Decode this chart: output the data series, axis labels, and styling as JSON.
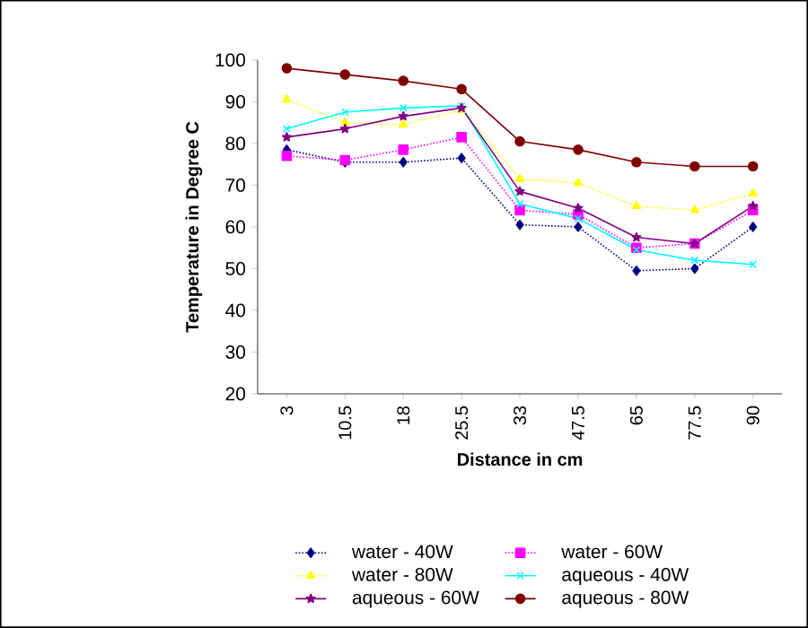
{
  "chart_data": {
    "type": "line",
    "xlabel": "Distance in cm",
    "ylabel": "Temperature in Degree C",
    "categories": [
      "3",
      "10.5",
      "18",
      "25.5",
      "33",
      "47.5",
      "65",
      "77.5",
      "90"
    ],
    "ylim": [
      20,
      100
    ],
    "yticks": [
      20,
      30,
      40,
      50,
      60,
      70,
      80,
      90,
      100
    ],
    "grid": false,
    "legend": "bottom",
    "series": [
      {
        "name": "water - 40W",
        "color": "#000080",
        "marker": "diamond",
        "line_style": "dotted",
        "values": [
          78.5,
          75.5,
          75.5,
          76.5,
          60.5,
          60,
          49.5,
          50,
          60
        ]
      },
      {
        "name": "water - 60W",
        "color": "#ff00ff",
        "marker": "square",
        "line_style": "dotted",
        "values": [
          77,
          76,
          78.5,
          81.5,
          64,
          63,
          55,
          56,
          64
        ]
      },
      {
        "name": "water - 80W",
        "color": "#ffff00",
        "marker": "triangle",
        "line_style": "dotted",
        "values": [
          90.5,
          85,
          84.5,
          88,
          71.5,
          70.5,
          65,
          64,
          68
        ]
      },
      {
        "name": "aqueous - 40W",
        "color": "#00ffff",
        "marker": "cross",
        "line_style": "solid",
        "values": [
          83.5,
          87.5,
          88.5,
          89,
          65.5,
          62,
          54.5,
          52,
          51
        ]
      },
      {
        "name": "aqueous - 60W",
        "color": "#800080",
        "marker": "star",
        "line_style": "solid",
        "values": [
          81.5,
          83.5,
          86.5,
          88.5,
          68.5,
          64.5,
          57.5,
          56,
          65
        ]
      },
      {
        "name": "aqueous - 80W",
        "color": "#800000",
        "marker": "circle",
        "line_style": "solid",
        "values": [
          98,
          96.5,
          95,
          93,
          80.5,
          78.5,
          75.5,
          74.5,
          74.5
        ]
      }
    ]
  }
}
